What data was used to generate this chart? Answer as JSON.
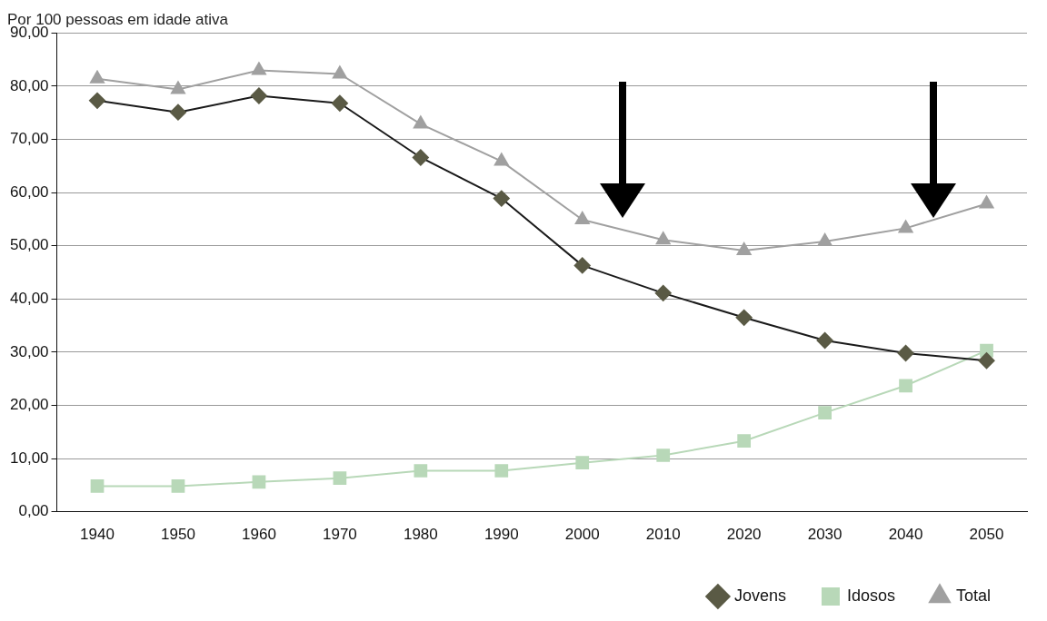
{
  "chart_data": {
    "type": "line",
    "ylabel": "Por 100 pessoas em idade ativa",
    "categories": [
      "1940",
      "1950",
      "1960",
      "1970",
      "1980",
      "1990",
      "2000",
      "2010",
      "2020",
      "2030",
      "2040",
      "2050"
    ],
    "series": [
      {
        "name": "Jovens",
        "color": "#1a1a1a",
        "marker": "diamond",
        "values": [
          77.3,
          75.1,
          78.2,
          76.8,
          66.6,
          58.9,
          46.3,
          41.1,
          36.5,
          32.2,
          29.8,
          28.4
        ]
      },
      {
        "name": "Idosos",
        "color": "#b8d8b8",
        "marker": "square",
        "values": [
          4.8,
          4.8,
          5.6,
          6.3,
          7.7,
          7.7,
          9.2,
          10.6,
          13.3,
          18.6,
          23.7,
          30.3
        ]
      },
      {
        "name": "Total",
        "color": "#a0a0a0",
        "marker": "triangle",
        "values": [
          81.4,
          79.4,
          83.0,
          82.3,
          72.9,
          65.9,
          54.9,
          51.1,
          49.1,
          50.8,
          53.3,
          57.9
        ]
      }
    ],
    "ylim": [
      0,
      90
    ],
    "yticks": [
      {
        "value": 0,
        "label": "0,00"
      },
      {
        "value": 10,
        "label": "10,00"
      },
      {
        "value": 20,
        "label": "20,00"
      },
      {
        "value": 30,
        "label": "30,00"
      },
      {
        "value": 40,
        "label": "40,00"
      },
      {
        "value": 50,
        "label": "50,00"
      },
      {
        "value": 60,
        "label": "60,00"
      },
      {
        "value": 70,
        "label": "70,00"
      },
      {
        "value": 80,
        "label": "80,00"
      },
      {
        "value": 90,
        "label": "90,00"
      }
    ],
    "grid": "y",
    "legend": "bottom right",
    "line_style": "solid"
  }
}
